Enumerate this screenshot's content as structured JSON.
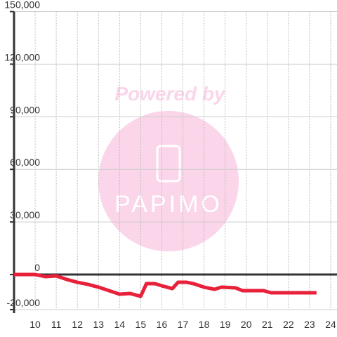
{
  "chart_data": {
    "type": "line",
    "watermark": {
      "text": "Powered by",
      "logo": "PAPIMO"
    },
    "x": [
      9,
      10,
      10.5,
      11,
      11.5,
      12,
      12.5,
      13,
      13.5,
      14,
      14.5,
      15,
      15.27,
      15.67,
      16,
      16.5,
      16.77,
      17.17,
      17.5,
      18,
      18.5,
      18.83,
      19.5,
      19.83,
      20.83,
      21.17,
      23.33
    ],
    "series": [
      {
        "color": "#e8203a",
        "values": [
          0,
          0,
          -1200,
          -800,
          -2800,
          -4400,
          -5600,
          -7200,
          -9200,
          -11200,
          -10800,
          -12400,
          -5200,
          -5200,
          -6400,
          -8000,
          -4400,
          -4400,
          -5200,
          -7200,
          -8400,
          -7200,
          -7600,
          -9200,
          -9200,
          -10400,
          -10400
        ]
      }
    ],
    "xlim": [
      9,
      24.3
    ],
    "xticks": [
      10,
      11,
      12,
      13,
      14,
      15,
      16,
      17,
      18,
      19,
      20,
      21,
      22,
      23,
      24
    ],
    "ylim": [
      -20000,
      150000
    ],
    "yticks": [
      {
        "value": -20000,
        "label": "-20,000"
      },
      0,
      {
        "value": 30000,
        "label": "30,000"
      },
      {
        "value": 60000,
        "label": "60,000"
      },
      {
        "value": 90000,
        "label": "90,000"
      },
      {
        "value": 120000,
        "label": "120,000"
      },
      {
        "value": 150000,
        "label": "150,000"
      }
    ],
    "grid": true
  }
}
